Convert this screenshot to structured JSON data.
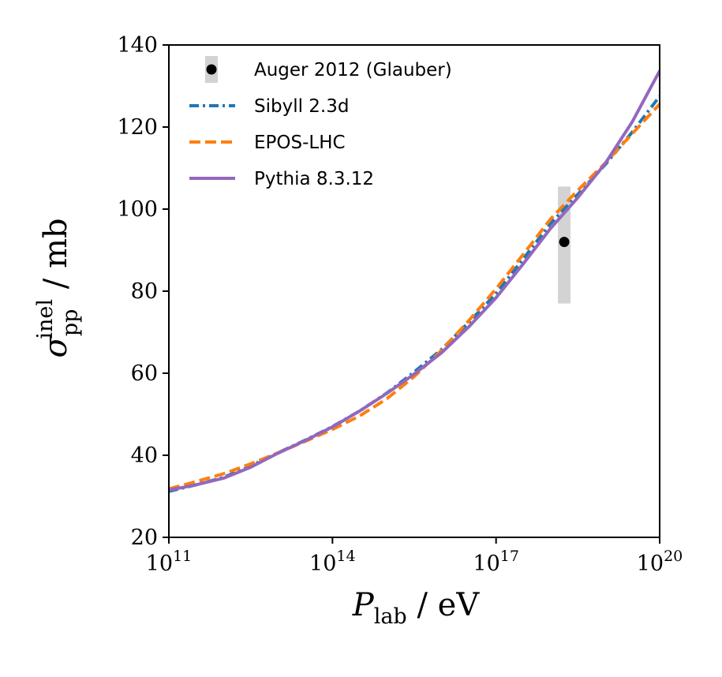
{
  "chart_data": {
    "type": "line",
    "title": "",
    "xlabel": {
      "main": "P",
      "sub": "lab",
      "unit": " / eV"
    },
    "ylabel": {
      "main": "σ",
      "sub": "pp",
      "sup": "inel",
      "unit": " / mb"
    },
    "x_scale": "log10",
    "xlim_exp": [
      11,
      20
    ],
    "ylim": [
      20,
      140
    ],
    "x_ticks": [
      {
        "base": "10",
        "exp": "11",
        "value": 11
      },
      {
        "base": "10",
        "exp": "14",
        "value": 14
      },
      {
        "base": "10",
        "exp": "17",
        "value": 17
      },
      {
        "base": "10",
        "exp": "20",
        "value": 20
      }
    ],
    "y_ticks": [
      "20",
      "40",
      "60",
      "80",
      "100",
      "120",
      "140"
    ],
    "grid": false,
    "legend_position": "top-left",
    "series": [
      {
        "name": "Sibyll 2.3d",
        "color": "#1f77b4",
        "style": "dashdot",
        "x": [
          11,
          11.5,
          12,
          12.5,
          13,
          13.5,
          14,
          14.5,
          15,
          15.5,
          16,
          16.5,
          17,
          17.5,
          18,
          18.5,
          19,
          19.5,
          20
        ],
        "y": [
          31.2,
          32.8,
          34.6,
          37.4,
          40.6,
          43.7,
          47.0,
          50.8,
          55.2,
          60.3,
          65.8,
          72.4,
          79.4,
          87.9,
          96.5,
          103.6,
          110.8,
          118.8,
          127.5
        ]
      },
      {
        "name": "EPOS-LHC",
        "color": "#ff7f0e",
        "style": "dashed",
        "x": [
          11,
          11.5,
          12,
          12.5,
          13,
          13.5,
          14,
          14.5,
          15,
          15.5,
          16,
          16.5,
          17,
          17.5,
          18,
          18.5,
          19,
          19.5,
          20
        ],
        "y": [
          31.8,
          33.6,
          35.5,
          37.9,
          40.6,
          43.4,
          46.3,
          49.6,
          53.8,
          59.2,
          65.6,
          72.8,
          80.6,
          89.0,
          97.6,
          104.6,
          111.2,
          118.4,
          125.6
        ]
      },
      {
        "name": "Pythia 8.3.12",
        "color": "#9467bd",
        "style": "solid",
        "x": [
          11,
          11.5,
          12,
          12.5,
          13,
          13.5,
          14,
          14.5,
          15,
          15.5,
          16,
          16.5,
          17,
          17.5,
          18,
          18.5,
          19,
          19.5,
          20
        ],
        "y": [
          31.5,
          32.8,
          34.4,
          37.1,
          40.5,
          43.6,
          46.9,
          50.8,
          55.1,
          59.8,
          65.0,
          71.3,
          78.4,
          86.7,
          95.3,
          102.8,
          111.1,
          121.3,
          133.7
        ]
      }
    ],
    "points": [
      {
        "name": "Auger 2012 (Glauber)",
        "x": 18.25,
        "y": 92,
        "yerr_low": 77,
        "yerr_high": 105.5,
        "marker_color": "#000000",
        "error_color": "#d3d3d3"
      }
    ]
  }
}
